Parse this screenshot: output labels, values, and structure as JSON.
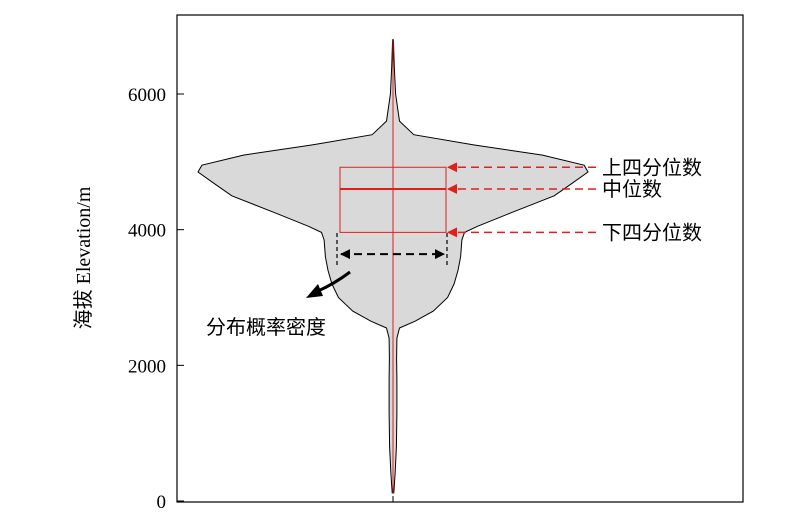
{
  "chart_data": {
    "type": "violin",
    "ylabel": "海拔 Elevation/m",
    "ylim": [
      0,
      6800
    ],
    "y_ticks": [
      0,
      2000,
      4000,
      6000
    ],
    "y_tick_labels": [
      "0",
      "2000",
      "4000",
      "6000"
    ],
    "grid": false,
    "distribution": {
      "min": 120,
      "max": 6800,
      "q1": 3960,
      "median": 4600,
      "q3": 4920,
      "fill_color": "#d9d9d9",
      "outline_color": "#000000",
      "box_color": "#e0201a",
      "density_profile": [
        {
          "y": 120,
          "w": 0.006
        },
        {
          "y": 400,
          "w": 0.016
        },
        {
          "y": 800,
          "w": 0.026
        },
        {
          "y": 1300,
          "w": 0.03
        },
        {
          "y": 1800,
          "w": 0.03
        },
        {
          "y": 2100,
          "w": 0.028
        },
        {
          "y": 2400,
          "w": 0.03
        },
        {
          "y": 2550,
          "w": 0.05
        },
        {
          "y": 2650,
          "w": 0.17
        },
        {
          "y": 2800,
          "w": 0.31
        },
        {
          "y": 3000,
          "w": 0.42
        },
        {
          "y": 3200,
          "w": 0.47
        },
        {
          "y": 3400,
          "w": 0.5
        },
        {
          "y": 3600,
          "w": 0.52
        },
        {
          "y": 3850,
          "w": 0.53
        },
        {
          "y": 3960,
          "w": 0.55
        },
        {
          "y": 4050,
          "w": 0.65
        },
        {
          "y": 4250,
          "w": 0.91
        },
        {
          "y": 4500,
          "w": 1.24
        },
        {
          "y": 4700,
          "w": 1.39
        },
        {
          "y": 4850,
          "w": 1.5
        },
        {
          "y": 4950,
          "w": 1.47
        },
        {
          "y": 5100,
          "w": 1.15
        },
        {
          "y": 5250,
          "w": 0.62
        },
        {
          "y": 5400,
          "w": 0.16
        },
        {
          "y": 5600,
          "w": 0.05
        },
        {
          "y": 6000,
          "w": 0.02
        },
        {
          "y": 6400,
          "w": 0.01
        },
        {
          "y": 6800,
          "w": 0.003
        }
      ]
    },
    "annotations": {
      "q3_label": "上四分位数",
      "median_label": "中位数",
      "q1_label": "下四分位数",
      "density_label": "分布概率密度"
    },
    "annotation_color": "#e0201a",
    "density_arrow_color": "#000000"
  }
}
